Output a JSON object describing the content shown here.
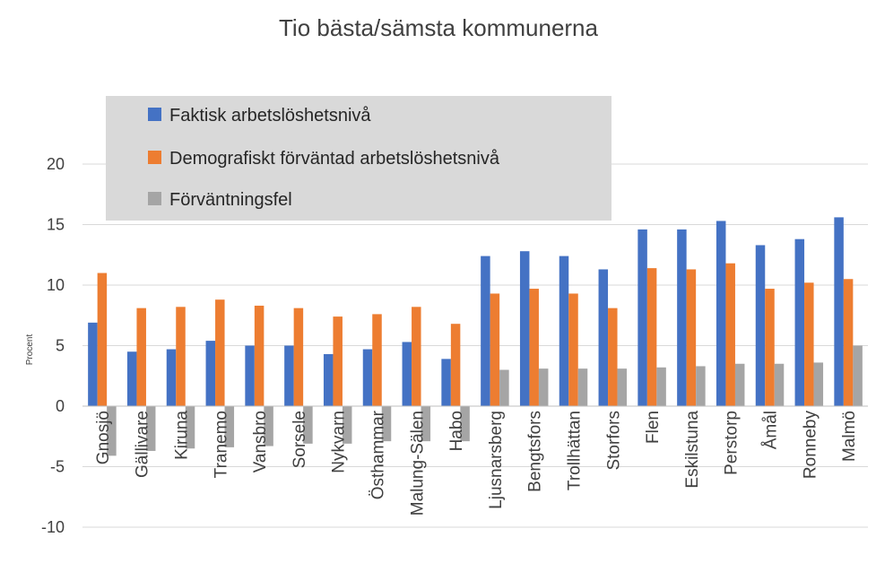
{
  "chart_data": {
    "type": "bar",
    "title": "Tio bästa/sämsta kommunerna",
    "xlabel": "",
    "ylabel": "Procent",
    "ylim": [
      -10,
      20
    ],
    "yticks": [
      -10,
      -5,
      0,
      5,
      10,
      15,
      20
    ],
    "grid": true,
    "legend_position": "top-left",
    "categories": [
      "Gnosjö",
      "Gällivare",
      "Kiruna",
      "Tranemo",
      "Vansbro",
      "Sorsele",
      "Nykvarn",
      "Östhammar",
      "Malung-Sälen",
      "Habo",
      "Ljusnarsberg",
      "Bengtsfors",
      "Trollhättan",
      "Storfors",
      "Flen",
      "Eskilstuna",
      "Perstorp",
      "Åmål",
      "Ronneby",
      "Malmö"
    ],
    "series": [
      {
        "name": "Faktisk arbetslöshetsnivå",
        "color": "#4472c4",
        "values": [
          6.9,
          4.5,
          4.7,
          5.4,
          5.0,
          5.0,
          4.3,
          4.7,
          5.3,
          3.9,
          12.4,
          12.8,
          12.4,
          11.3,
          14.6,
          14.6,
          15.3,
          13.3,
          13.8,
          15.6
        ]
      },
      {
        "name": "Demografiskt förväntad arbetslöshetsnivå",
        "color": "#ed7d31",
        "values": [
          11.0,
          8.1,
          8.2,
          8.8,
          8.3,
          8.1,
          7.4,
          7.6,
          8.2,
          6.8,
          9.3,
          9.7,
          9.3,
          8.1,
          11.4,
          11.3,
          11.8,
          9.7,
          10.2,
          10.5
        ]
      },
      {
        "name": "Förväntningsfel",
        "color": "#a5a5a5",
        "values": [
          -4.1,
          -3.7,
          -3.5,
          -3.4,
          -3.3,
          -3.1,
          -3.1,
          -2.9,
          -2.9,
          -2.9,
          3.0,
          3.1,
          3.1,
          3.1,
          3.2,
          3.3,
          3.5,
          3.5,
          3.6,
          5.0
        ]
      }
    ]
  }
}
